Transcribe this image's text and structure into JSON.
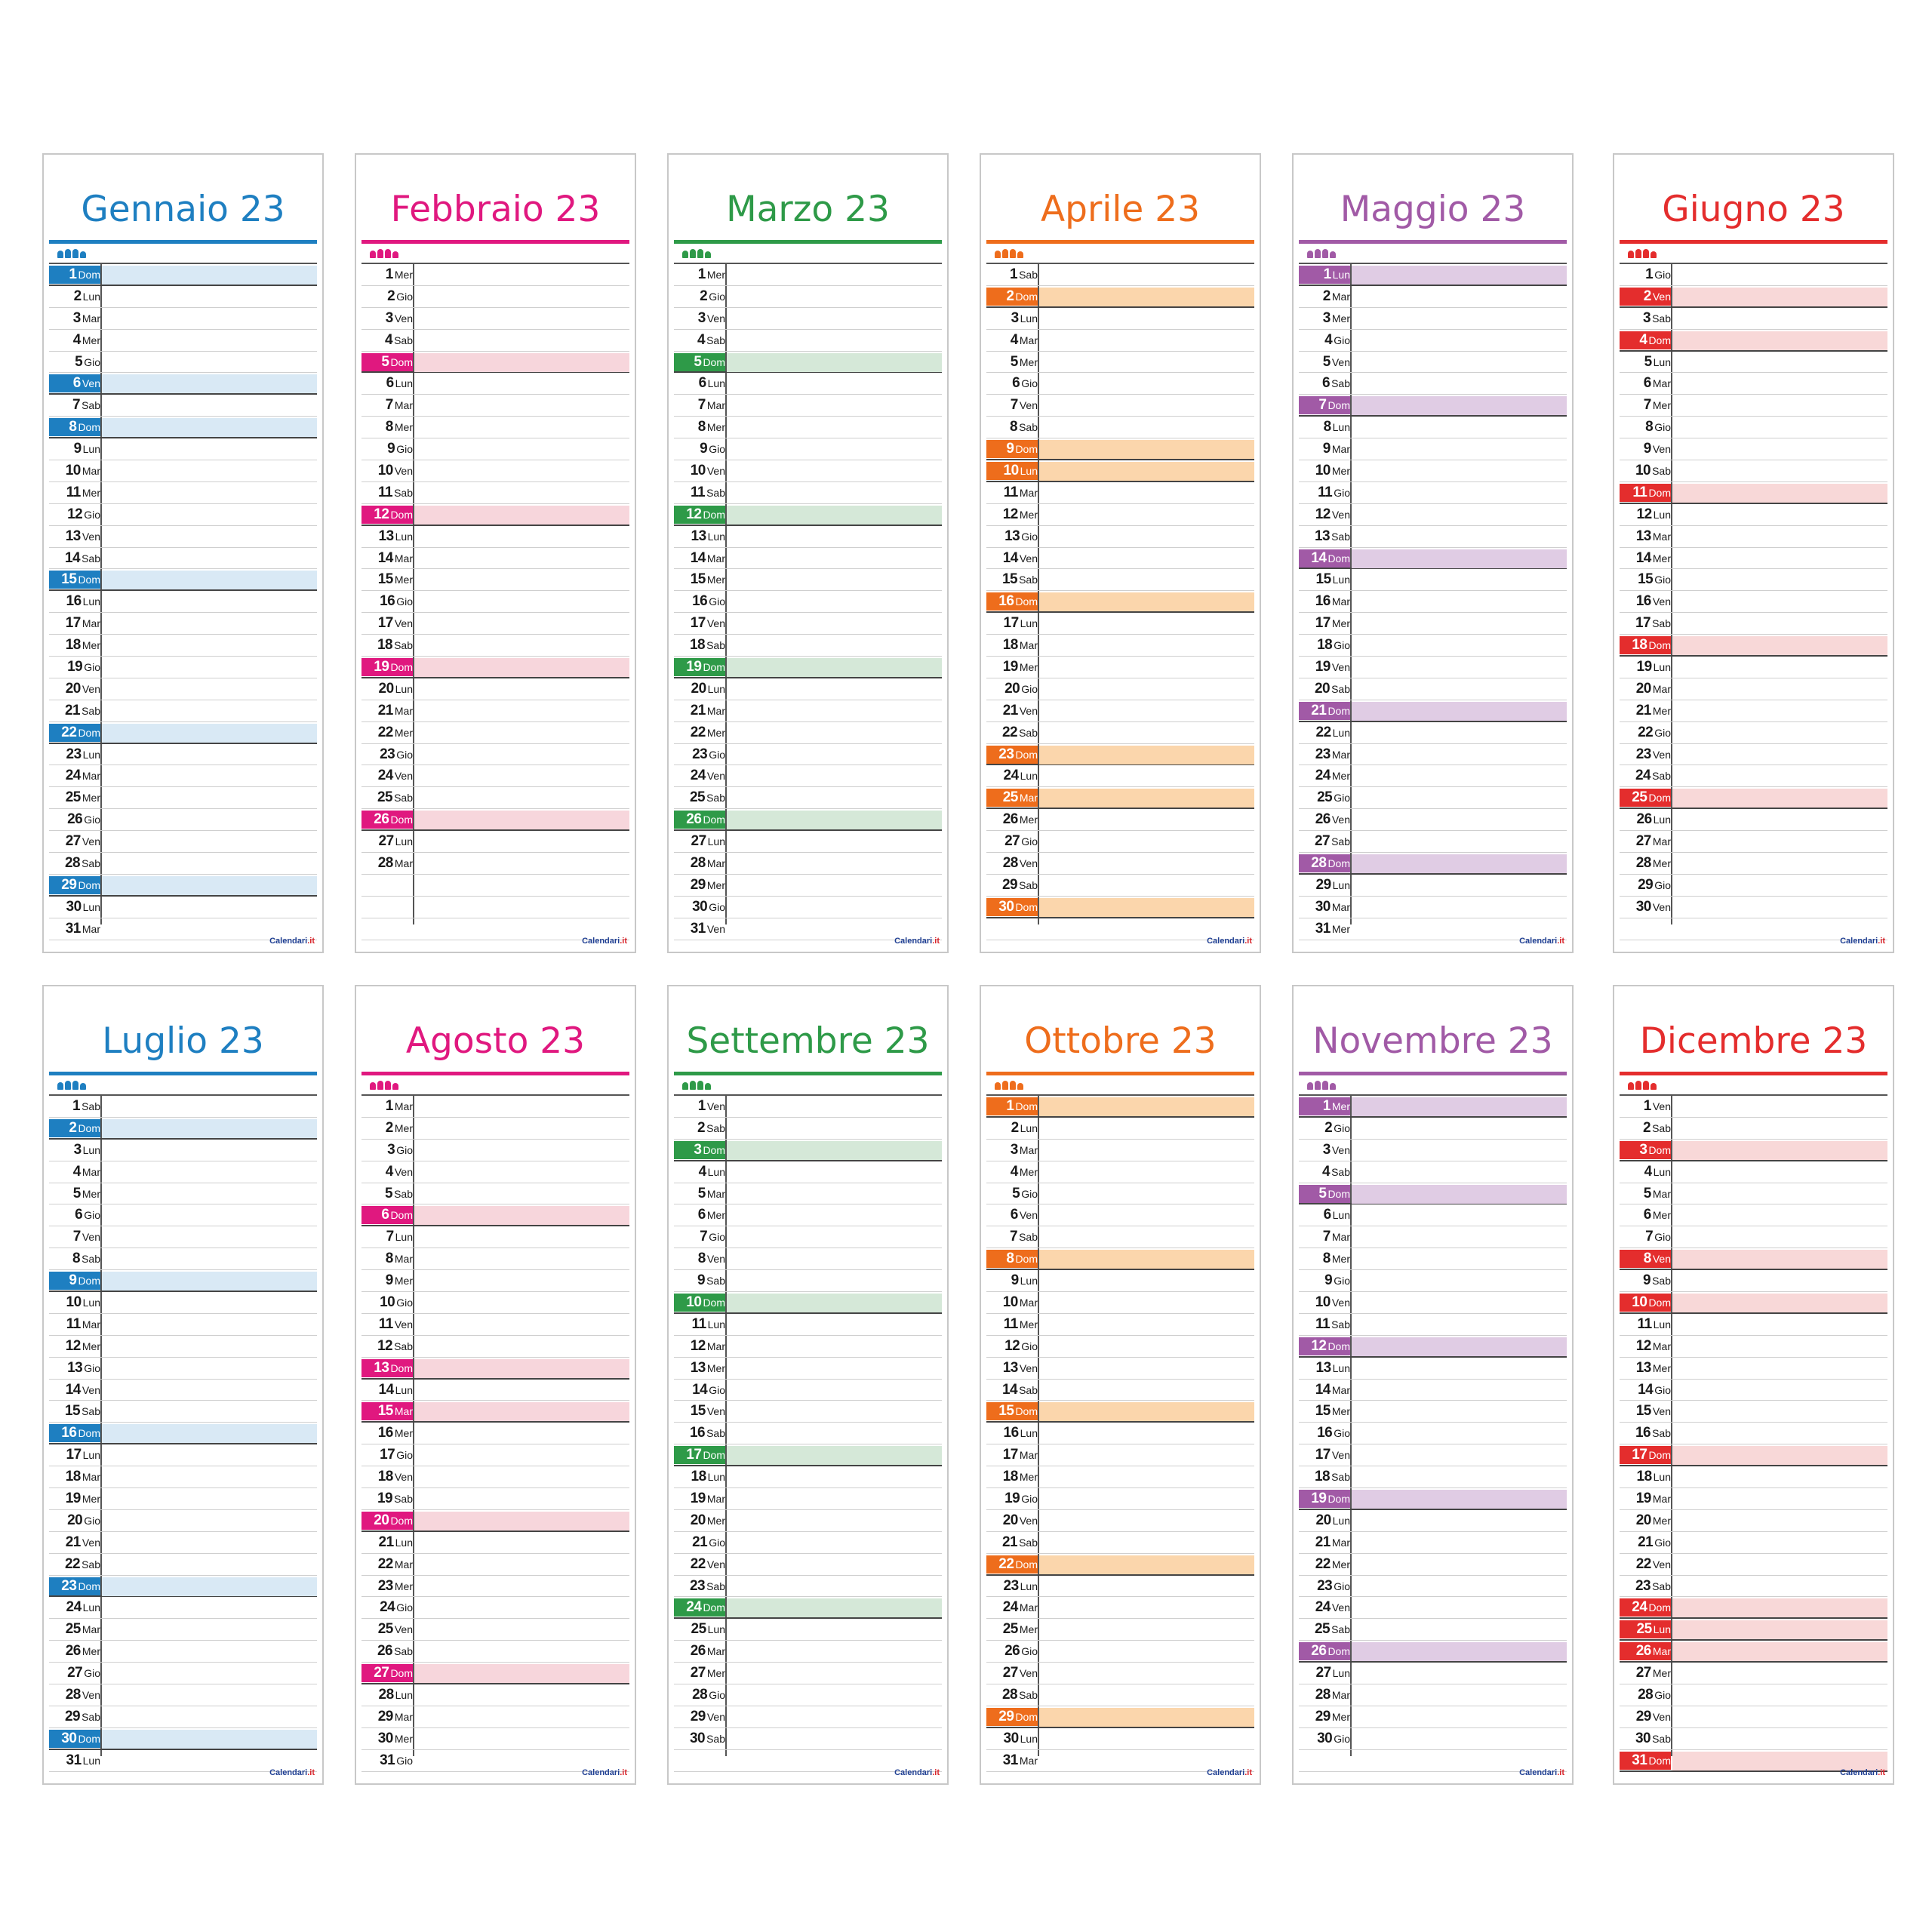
{
  "brand": {
    "name": "Calendari",
    "tld": ".it"
  },
  "months": [
    {
      "title": "Gennaio 23",
      "main": "#1e7fc1",
      "light": "#d9e9f5",
      "first": 7,
      "days": 31,
      "holidays": [
        1,
        6
      ]
    },
    {
      "title": "Febbraio 23",
      "main": "#e0187f",
      "light": "#f7d6dc",
      "first": 3,
      "days": 28,
      "holidays": []
    },
    {
      "title": "Marzo 23",
      "main": "#2e9a48",
      "light": "#d5e8d8",
      "first": 3,
      "days": 31,
      "holidays": []
    },
    {
      "title": "Aprile 23",
      "main": "#ee6d1c",
      "light": "#fbd6ac",
      "first": 6,
      "days": 30,
      "holidays": [
        10,
        25
      ]
    },
    {
      "title": "Maggio 23",
      "main": "#a15aa6",
      "light": "#e0cce4",
      "first": 1,
      "days": 31,
      "holidays": [
        1
      ]
    },
    {
      "title": "Giugno 23",
      "main": "#e42d2d",
      "light": "#f8d8d8",
      "first": 4,
      "days": 30,
      "holidays": [
        2
      ]
    },
    {
      "title": "Luglio 23",
      "main": "#1e7fc1",
      "light": "#d9e9f5",
      "first": 6,
      "days": 31,
      "holidays": []
    },
    {
      "title": "Agosto 23",
      "main": "#e0187f",
      "light": "#f7d6dc",
      "first": 2,
      "days": 31,
      "holidays": [
        15
      ]
    },
    {
      "title": "Settembre 23",
      "main": "#2e9a48",
      "light": "#d5e8d8",
      "first": 5,
      "days": 30,
      "holidays": []
    },
    {
      "title": "Ottobre 23",
      "main": "#ee6d1c",
      "light": "#fbd6ac",
      "first": 7,
      "days": 31,
      "holidays": []
    },
    {
      "title": "Novembre 23",
      "main": "#a15aa6",
      "light": "#e0cce4",
      "first": 3,
      "days": 30,
      "holidays": [
        1
      ]
    },
    {
      "title": "Dicembre 23",
      "main": "#e42d2d",
      "light": "#f8d8d8",
      "first": 5,
      "days": 31,
      "holidays": [
        8,
        25,
        26
      ]
    }
  ],
  "weekdays": [
    "Lun",
    "Mar",
    "Mer",
    "Gio",
    "Ven",
    "Sab",
    "Dom"
  ]
}
